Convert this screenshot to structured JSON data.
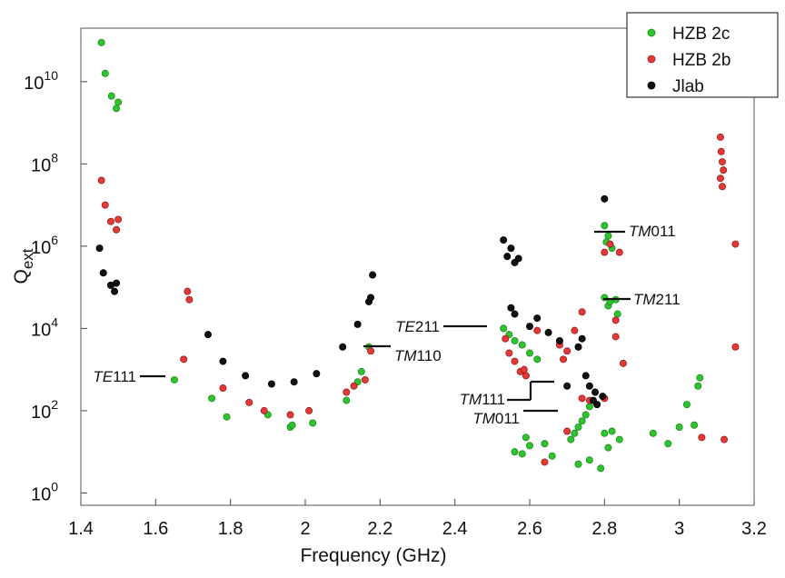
{
  "chart_data": {
    "type": "scatter",
    "xlabel": "Frequency (GHz)",
    "ylabel": "Q",
    "ylabel_sub": "ext",
    "xlim": [
      1.4,
      3.2
    ],
    "ylim_log10": [
      -0.3,
      11.3
    ],
    "y_scale": "log",
    "x_ticks": [
      1.4,
      1.6,
      1.8,
      2.0,
      2.2,
      2.4,
      2.6,
      2.8,
      3.0,
      3.2
    ],
    "x_tick_labels": [
      "1.4",
      "1.6",
      "1.8",
      "2",
      "2.2",
      "2.4",
      "2.6",
      "2.8",
      "3",
      "3.2"
    ],
    "y_ticks": [
      {
        "exp": 0,
        "base": "10",
        "sup": "0"
      },
      {
        "exp": 2,
        "base": "10",
        "sup": "2"
      },
      {
        "exp": 4,
        "base": "10",
        "sup": "4"
      },
      {
        "exp": 6,
        "base": "10",
        "sup": "6"
      },
      {
        "exp": 8,
        "base": "10",
        "sup": "8"
      },
      {
        "exp": 10,
        "base": "10",
        "sup": "10"
      }
    ],
    "grid": false,
    "legend_position": "top-right",
    "series": [
      {
        "name": "HZB 2c",
        "color": "#2fc42f",
        "edge": "#1d8a1d",
        "points": [
          [
            1.455,
            10.95
          ],
          [
            1.465,
            10.2
          ],
          [
            1.482,
            9.65
          ],
          [
            1.495,
            9.35
          ],
          [
            1.5,
            9.5
          ],
          [
            1.65,
            2.75
          ],
          [
            1.75,
            2.3
          ],
          [
            1.79,
            1.85
          ],
          [
            1.9,
            1.9
          ],
          [
            1.96,
            1.6
          ],
          [
            1.965,
            1.65
          ],
          [
            2.02,
            1.7
          ],
          [
            2.11,
            2.25
          ],
          [
            2.14,
            2.7
          ],
          [
            2.15,
            2.95
          ],
          [
            2.17,
            3.55
          ],
          [
            2.53,
            4.0
          ],
          [
            2.545,
            3.85
          ],
          [
            2.56,
            3.7
          ],
          [
            2.58,
            3.6
          ],
          [
            2.6,
            3.4
          ],
          [
            2.62,
            3.25
          ],
          [
            2.56,
            1.0
          ],
          [
            2.58,
            0.95
          ],
          [
            2.59,
            1.35
          ],
          [
            2.6,
            1.15
          ],
          [
            2.64,
            1.2
          ],
          [
            2.66,
            0.9
          ],
          [
            2.71,
            1.3
          ],
          [
            2.72,
            1.45
          ],
          [
            2.73,
            1.6
          ],
          [
            2.74,
            1.75
          ],
          [
            2.75,
            1.9
          ],
          [
            2.76,
            2.1
          ],
          [
            2.73,
            0.7
          ],
          [
            2.76,
            0.8
          ],
          [
            2.79,
            0.6
          ],
          [
            2.8,
            1.45
          ],
          [
            2.81,
            1.1
          ],
          [
            2.82,
            1.5
          ],
          [
            2.84,
            1.3
          ],
          [
            2.8,
            6.5
          ],
          [
            2.805,
            6.1
          ],
          [
            2.81,
            6.25
          ],
          [
            2.82,
            5.95
          ],
          [
            2.8,
            4.75
          ],
          [
            2.81,
            4.55
          ],
          [
            2.815,
            4.65
          ],
          [
            2.83,
            4.7
          ],
          [
            2.835,
            4.35
          ],
          [
            2.93,
            1.45
          ],
          [
            2.97,
            1.2
          ],
          [
            3.0,
            1.6
          ],
          [
            3.02,
            2.15
          ],
          [
            3.04,
            1.65
          ],
          [
            3.05,
            2.6
          ],
          [
            3.055,
            2.8
          ]
        ]
      },
      {
        "name": "HZB 2b",
        "color": "#e23a36",
        "edge": "#9c1e1c",
        "points": [
          [
            1.455,
            7.6
          ],
          [
            1.465,
            7.0
          ],
          [
            1.48,
            6.6
          ],
          [
            1.495,
            6.4
          ],
          [
            1.5,
            6.65
          ],
          [
            1.685,
            4.9
          ],
          [
            1.69,
            4.7
          ],
          [
            1.675,
            3.25
          ],
          [
            1.78,
            2.55
          ],
          [
            1.85,
            2.2
          ],
          [
            1.89,
            2.0
          ],
          [
            1.96,
            1.9
          ],
          [
            2.01,
            2.0
          ],
          [
            2.11,
            2.45
          ],
          [
            2.13,
            2.6
          ],
          [
            2.16,
            2.75
          ],
          [
            2.175,
            3.45
          ],
          [
            2.535,
            3.75
          ],
          [
            2.545,
            3.4
          ],
          [
            2.56,
            3.2
          ],
          [
            2.575,
            2.95
          ],
          [
            2.59,
            2.85
          ],
          [
            2.585,
            3.0
          ],
          [
            2.62,
            3.95
          ],
          [
            2.68,
            3.6
          ],
          [
            2.69,
            3.25
          ],
          [
            2.7,
            3.45
          ],
          [
            2.72,
            3.95
          ],
          [
            2.74,
            4.4
          ],
          [
            2.64,
            0.75
          ],
          [
            2.7,
            1.5
          ],
          [
            2.74,
            2.3
          ],
          [
            2.76,
            2.25
          ],
          [
            2.8,
            2.3
          ],
          [
            2.83,
            3.8
          ],
          [
            2.815,
            6.05
          ],
          [
            2.84,
            5.85
          ],
          [
            2.8,
            5.85
          ],
          [
            2.85,
            3.15
          ],
          [
            2.83,
            4.2
          ],
          [
            3.06,
            1.35
          ],
          [
            3.12,
            1.3
          ],
          [
            3.11,
            8.65
          ],
          [
            3.112,
            8.3
          ],
          [
            3.115,
            8.05
          ],
          [
            3.118,
            7.85
          ],
          [
            3.11,
            7.65
          ],
          [
            3.115,
            7.45
          ],
          [
            3.15,
            6.05
          ],
          [
            3.15,
            3.55
          ]
        ]
      },
      {
        "name": "Jlab",
        "color": "#111111",
        "edge": "#000000",
        "points": [
          [
            1.45,
            5.95
          ],
          [
            1.46,
            5.35
          ],
          [
            1.48,
            5.05
          ],
          [
            1.49,
            4.9
          ],
          [
            1.495,
            5.1
          ],
          [
            1.74,
            3.85
          ],
          [
            1.78,
            3.2
          ],
          [
            1.84,
            2.85
          ],
          [
            1.91,
            2.65
          ],
          [
            1.97,
            2.7
          ],
          [
            2.03,
            2.9
          ],
          [
            2.1,
            3.55
          ],
          [
            2.14,
            4.1
          ],
          [
            2.17,
            4.65
          ],
          [
            2.175,
            4.75
          ],
          [
            2.18,
            5.3
          ],
          [
            2.53,
            6.15
          ],
          [
            2.54,
            5.75
          ],
          [
            2.55,
            5.95
          ],
          [
            2.56,
            5.6
          ],
          [
            2.57,
            5.7
          ],
          [
            2.55,
            4.5
          ],
          [
            2.56,
            4.35
          ],
          [
            2.6,
            4.05
          ],
          [
            2.62,
            4.25
          ],
          [
            2.65,
            3.9
          ],
          [
            2.68,
            3.7
          ],
          [
            2.7,
            2.6
          ],
          [
            2.73,
            3.55
          ],
          [
            2.74,
            3.75
          ],
          [
            2.75,
            2.85
          ],
          [
            2.76,
            2.6
          ],
          [
            2.77,
            2.25
          ],
          [
            2.775,
            2.45
          ],
          [
            2.78,
            2.15
          ],
          [
            2.795,
            2.35
          ],
          [
            2.8,
            7.15
          ]
        ]
      }
    ],
    "annotations": [
      {
        "label": "TE111",
        "italic": "TE",
        "rest": "111"
      },
      {
        "label": "TM110",
        "italic": "TM",
        "rest": "110"
      },
      {
        "label": "TE211",
        "italic": "TE",
        "rest": "211"
      },
      {
        "label": "TM111",
        "italic": "TM",
        "rest": "111"
      },
      {
        "label": "TM011",
        "italic": "TM",
        "rest": "011"
      },
      {
        "label": "TM011",
        "italic": "TM",
        "rest": "011"
      },
      {
        "label": "TM211",
        "italic": "TM",
        "rest": "211"
      }
    ]
  }
}
